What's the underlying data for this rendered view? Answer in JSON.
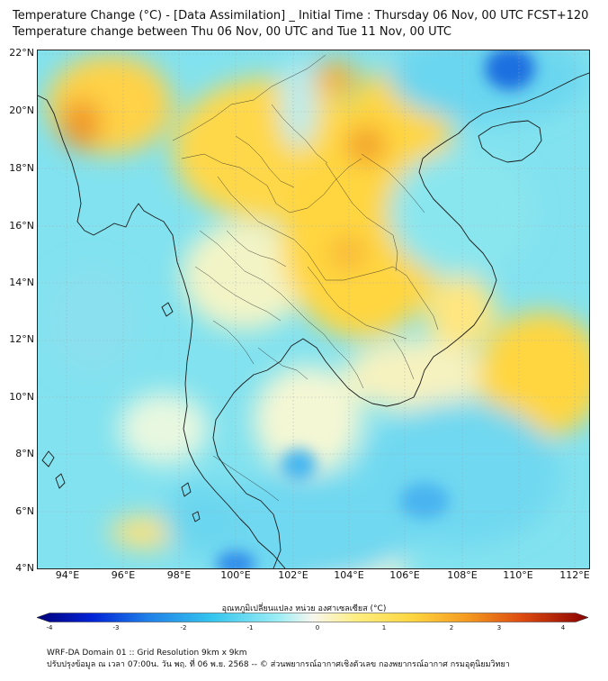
{
  "header": {
    "title_line1": "Temperature Change (°C) - [Data Assimilation] _ Initial Time : Thursday 06 Nov, 00 UTC FCST+120",
    "title_line2": "Temperature change between Thu 06 Nov, 00 UTC and Tue 11 Nov, 00 UTC"
  },
  "map": {
    "lat_labels": [
      "22°N",
      "20°N",
      "18°N",
      "16°N",
      "14°N",
      "12°N",
      "10°N",
      "8°N",
      "6°N",
      "4°N"
    ],
    "lon_labels": [
      "94°E",
      "96°E",
      "98°E",
      "100°E",
      "102°E",
      "104°E",
      "106°E",
      "108°E",
      "110°E",
      "112°E"
    ],
    "lat_range": [
      4,
      22
    ],
    "lon_range": [
      93,
      112.3
    ],
    "colors": {
      "cold": "#1f7fe8",
      "cool": "#7fe3f0",
      "neutral": "#f8f6c8",
      "warm": "#ffd640",
      "hot": "#f0901c"
    }
  },
  "colorbar": {
    "label": "อุณหภูมิเปลี่ยนแปลง หน่วย องศาเซลเซียส (°C)",
    "ticks": [
      "-4",
      "-3",
      "-2",
      "-1",
      "0",
      "1",
      "2",
      "3",
      "4"
    ],
    "range": [
      -4,
      4
    ],
    "stops": [
      "#00007a",
      "#0022d6",
      "#1f7fe8",
      "#35c6ee",
      "#9feef5",
      "#f7f7ef",
      "#ffee80",
      "#ffd640",
      "#f49a20",
      "#dd4a10",
      "#8a0000"
    ]
  },
  "footer": {
    "line1": "WRF-DA Domain 01 :: Grid Resolution 9km x 9km",
    "line2": "ปรับปรุงข้อมูล ณ เวลา 07:00น. วัน พฤ. ที่ 06 พ.ย. 2568 -- © ส่วนพยากรณ์อากาศเชิงตัวเลข กองพยากรณ์อากาศ กรมอุตุนิยมวิทยา"
  }
}
